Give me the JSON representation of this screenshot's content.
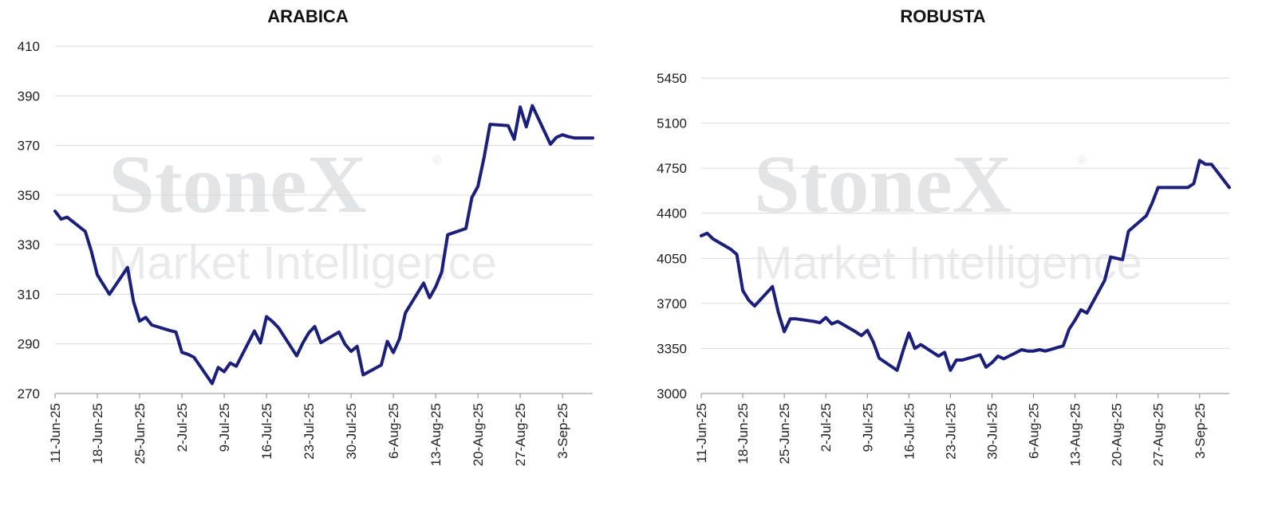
{
  "colors": {
    "line": "#1b1f7a",
    "grid": "#d9d9d9",
    "watermark": "#e3e4e6"
  },
  "watermark": {
    "brand": "StoneX",
    "registered": "®",
    "tagline": "Market Intelligence"
  },
  "chart_data": [
    {
      "type": "line",
      "title": "ARABICA",
      "ylim": [
        270,
        410
      ],
      "yticks": [
        270,
        290,
        310,
        330,
        350,
        370,
        390,
        410
      ],
      "xlim": [
        "2025-06-11",
        "2025-09-08"
      ],
      "xtick_dates": [
        "2025-06-11",
        "2025-06-18",
        "2025-06-25",
        "2025-07-02",
        "2025-07-09",
        "2025-07-16",
        "2025-07-23",
        "2025-07-30",
        "2025-08-06",
        "2025-08-13",
        "2025-08-20",
        "2025-08-27",
        "2025-09-03"
      ],
      "xtick_labels": [
        "11-Jun-25",
        "18-Jun-25",
        "25-Jun-25",
        "2-Jul-25",
        "9-Jul-25",
        "16-Jul-25",
        "23-Jul-25",
        "30-Jul-25",
        "6-Aug-25",
        "13-Aug-25",
        "20-Aug-25",
        "27-Aug-25",
        "3-Sep-25"
      ],
      "grid": true,
      "series": [
        {
          "x": [
            "2025-06-11",
            "2025-06-12",
            "2025-06-13",
            "2025-06-16",
            "2025-06-17",
            "2025-06-18",
            "2025-06-20",
            "2025-06-23",
            "2025-06-24",
            "2025-06-25",
            "2025-06-26",
            "2025-06-27",
            "2025-06-30",
            "2025-07-01",
            "2025-07-02",
            "2025-07-03",
            "2025-07-04",
            "2025-07-07",
            "2025-07-08",
            "2025-07-09",
            "2025-07-10",
            "2025-07-11",
            "2025-07-14",
            "2025-07-15",
            "2025-07-16",
            "2025-07-17",
            "2025-07-18",
            "2025-07-21",
            "2025-07-22",
            "2025-07-23",
            "2025-07-24",
            "2025-07-25",
            "2025-07-28",
            "2025-07-29",
            "2025-07-30",
            "2025-07-31",
            "2025-08-01",
            "2025-08-04",
            "2025-08-05",
            "2025-08-06",
            "2025-08-07",
            "2025-08-08",
            "2025-08-11",
            "2025-08-12",
            "2025-08-13",
            "2025-08-14",
            "2025-08-15",
            "2025-08-18",
            "2025-08-19",
            "2025-08-20",
            "2025-08-21",
            "2025-08-22",
            "2025-08-25",
            "2025-08-26",
            "2025-08-27",
            "2025-08-28",
            "2025-08-29",
            "2025-09-01",
            "2025-09-02",
            "2025-09-03",
            "2025-09-04",
            "2025-09-05",
            "2025-09-08"
          ],
          "values": [
            343.5,
            340.3,
            341.1,
            335.3,
            327.5,
            317.8,
            310.0,
            320.8,
            307.0,
            299.2,
            300.7,
            297.6,
            295.4,
            294.8,
            286.6,
            285.8,
            284.6,
            274.0,
            280.5,
            278.8,
            282.3,
            281.0,
            295.2,
            290.4,
            301.0,
            299.0,
            296.5,
            285.2,
            290.3,
            294.5,
            297.0,
            290.5,
            294.8,
            289.9,
            287.0,
            289.0,
            277.5,
            281.5,
            291.0,
            286.5,
            292.0,
            302.5,
            314.5,
            308.6,
            313.0,
            319.0,
            334.0,
            336.5,
            349.0,
            353.5,
            365.0,
            378.5,
            378.0,
            372.5,
            385.5,
            377.5,
            386.0,
            370.5,
            373.3,
            374.3,
            373.5,
            373.0,
            373.0
          ]
        }
      ]
    },
    {
      "type": "line",
      "title": "ROBUSTA",
      "ylim": [
        3000,
        5450
      ],
      "yticks": [
        3000,
        3350,
        3700,
        4050,
        4400,
        4750,
        5100,
        5450
      ],
      "xlim": [
        "2025-06-11",
        "2025-09-08"
      ],
      "xtick_dates": [
        "2025-06-11",
        "2025-06-18",
        "2025-06-25",
        "2025-07-02",
        "2025-07-09",
        "2025-07-16",
        "2025-07-23",
        "2025-07-30",
        "2025-08-06",
        "2025-08-13",
        "2025-08-20",
        "2025-08-27",
        "2025-09-03"
      ],
      "xtick_labels": [
        "11-Jun-25",
        "18-Jun-25",
        "25-Jun-25",
        "2-Jul-25",
        "9-Jul-25",
        "16-Jul-25",
        "23-Jul-25",
        "30-Jul-25",
        "6-Aug-25",
        "13-Aug-25",
        "20-Aug-25",
        "27-Aug-25",
        "3-Sep-25"
      ],
      "grid": true,
      "series": [
        {
          "x": [
            "2025-06-11",
            "2025-06-12",
            "2025-06-13",
            "2025-06-16",
            "2025-06-17",
            "2025-06-18",
            "2025-06-19",
            "2025-06-20",
            "2025-06-23",
            "2025-06-24",
            "2025-06-25",
            "2025-06-26",
            "2025-06-27",
            "2025-06-30",
            "2025-07-01",
            "2025-07-02",
            "2025-07-03",
            "2025-07-04",
            "2025-07-07",
            "2025-07-08",
            "2025-07-09",
            "2025-07-10",
            "2025-07-11",
            "2025-07-14",
            "2025-07-15",
            "2025-07-16",
            "2025-07-17",
            "2025-07-18",
            "2025-07-21",
            "2025-07-22",
            "2025-07-23",
            "2025-07-24",
            "2025-07-25",
            "2025-07-28",
            "2025-07-29",
            "2025-07-30",
            "2025-07-31",
            "2025-08-01",
            "2025-08-04",
            "2025-08-05",
            "2025-08-06",
            "2025-08-07",
            "2025-08-08",
            "2025-08-11",
            "2025-08-12",
            "2025-08-13",
            "2025-08-14",
            "2025-08-15",
            "2025-08-18",
            "2025-08-19",
            "2025-08-20",
            "2025-08-21",
            "2025-08-22",
            "2025-08-25",
            "2025-08-26",
            "2025-08-27",
            "2025-08-28",
            "2025-08-29",
            "2025-09-01",
            "2025-09-02",
            "2025-09-03",
            "2025-09-04",
            "2025-09-05",
            "2025-09-08"
          ],
          "values": [
            4225,
            4245,
            4200,
            4120,
            4080,
            3800,
            3725,
            3680,
            3830,
            3630,
            3480,
            3580,
            3580,
            3560,
            3550,
            3590,
            3540,
            3560,
            3480,
            3450,
            3490,
            3400,
            3275,
            3180,
            3330,
            3470,
            3350,
            3380,
            3290,
            3320,
            3180,
            3260,
            3260,
            3300,
            3205,
            3240,
            3290,
            3270,
            3340,
            3330,
            3330,
            3340,
            3330,
            3370,
            3500,
            3570,
            3650,
            3625,
            3880,
            4060,
            4050,
            4040,
            4260,
            4380,
            4480,
            4600,
            4600,
            4600,
            4600,
            4630,
            4810,
            4780,
            4780,
            4600
          ]
        }
      ]
    }
  ]
}
